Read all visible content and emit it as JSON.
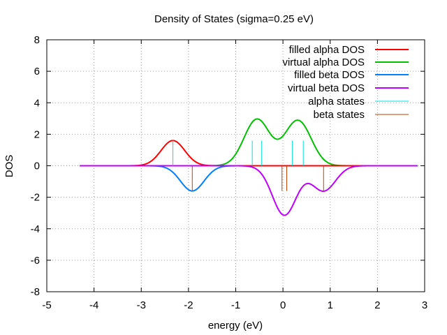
{
  "chart_data": {
    "type": "line",
    "title": "Density of States (sigma=0.25 eV)",
    "xlabel": "energy (eV)",
    "ylabel": "DOS",
    "xlim": [
      -5,
      3
    ],
    "ylim": [
      -8,
      8
    ],
    "x_ticks": [
      -5,
      -4,
      -3,
      -2,
      -1,
      0,
      1,
      2,
      3
    ],
    "y_ticks": [
      -8,
      -6,
      -4,
      -2,
      0,
      2,
      4,
      6,
      8
    ],
    "grid": true,
    "legend_position": "top-right",
    "sigma": 0.25,
    "x_range": [
      -4.3,
      2.85
    ],
    "stick_height": 1.6,
    "series": [
      {
        "name": "filled alpha DOS",
        "color": "#ff0000",
        "style": "line"
      },
      {
        "name": "virtual alpha DOS",
        "color": "#00c000",
        "style": "line"
      },
      {
        "name": "filled beta DOS",
        "color": "#0080ff",
        "style": "line"
      },
      {
        "name": "virtual beta DOS",
        "color": "#c000ff",
        "style": "line"
      },
      {
        "name": "alpha states",
        "color": "#00e0e0",
        "style": "sticks"
      },
      {
        "name": "beta states",
        "color": "#c04000",
        "style": "sticks"
      }
    ],
    "alpha_states_filled": [
      -2.33
    ],
    "alpha_states_virtual": [
      -0.65,
      -0.45,
      0.2,
      0.43
    ],
    "beta_states_filled": [
      -1.92
    ],
    "beta_states_virtual": [
      -0.02,
      0.08,
      0.86
    ]
  }
}
